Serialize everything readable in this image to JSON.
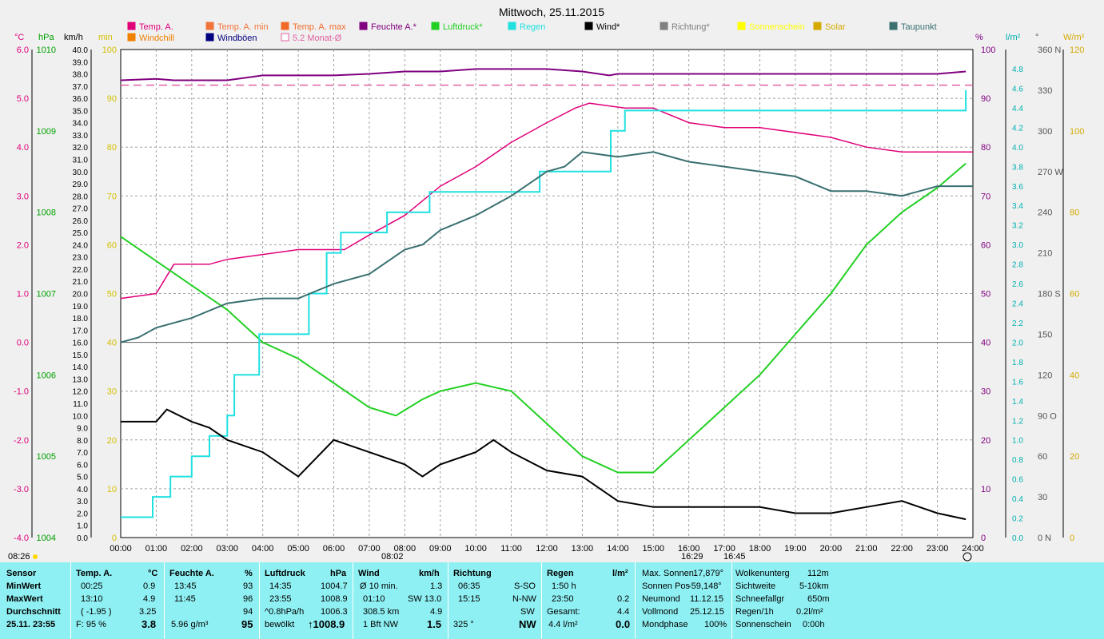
{
  "title": "Mittwoch, 25.11.2015",
  "legend": [
    {
      "label": "Temp. A.",
      "color": "#e0007a"
    },
    {
      "label": "Temp. A. min",
      "color": "#f0743a"
    },
    {
      "label": "Temp. A. max",
      "color": "#f06a2a"
    },
    {
      "label": "Feuchte A.*",
      "color": "#800080"
    },
    {
      "label": "Luftdruck*",
      "color": "#22d022"
    },
    {
      "label": "Regen",
      "color": "#20e0e0"
    },
    {
      "label": "Wind*",
      "color": "#000000"
    },
    {
      "label": "Richtung*",
      "color": "#808080"
    },
    {
      "label": "Sonnenschein",
      "color": "#ffff00"
    },
    {
      "label": "Solar",
      "color": "#d4aa00"
    },
    {
      "label": "Taupunkt",
      "color": "#3a7070"
    },
    {
      "label": "Windchill",
      "color": "#f08000"
    },
    {
      "label": "Windböen",
      "color": "#000080"
    },
    {
      "label": "5.2 Monat-Ø",
      "color": "#e060a0"
    }
  ],
  "axis_units": {
    "c": "°C",
    "hpa": "hPa",
    "kmh": "km/h",
    "min": "min",
    "pct": "%",
    "lm2": "l/m²",
    "deg": "°",
    "wm2": "W/m²"
  },
  "chart_data": {
    "type": "line",
    "title": "Mittwoch, 25.11.2015",
    "x_ticks": [
      "00:00",
      "01:00",
      "02:00",
      "03:00",
      "04:00",
      "05:00",
      "06:00",
      "07:00",
      "08:00",
      "09:00",
      "10:00",
      "11:00",
      "12:00",
      "13:00",
      "14:00",
      "15:00",
      "16:00",
      "17:00",
      "18:00",
      "19:00",
      "20:00",
      "21:00",
      "22:00",
      "23:00",
      "24:00"
    ],
    "axes": {
      "temp_c": {
        "range": [
          -4.0,
          6.0
        ],
        "ticks": [
          "6.0",
          "5.0",
          "4.0",
          "3.0",
          "2.0",
          "1.0",
          "0.0",
          "-1.0",
          "-2.0",
          "-3.0",
          "-4.0"
        ]
      },
      "pressure_hpa": {
        "range": [
          1004,
          1010
        ],
        "ticks": [
          "1010",
          "1009",
          "1008",
          "1007",
          "1006",
          "1005",
          "1004"
        ]
      },
      "wind_kmh": {
        "range": [
          0,
          40
        ],
        "step": 1
      },
      "sun_min": {
        "range": [
          0,
          100
        ],
        "ticks": [
          "100",
          "90",
          "80",
          "70",
          "60",
          "50",
          "40",
          "30",
          "20",
          "10",
          "0"
        ]
      },
      "humidity_pct": {
        "range": [
          0,
          100
        ],
        "ticks": [
          "100",
          "90",
          "80",
          "70",
          "60",
          "50",
          "40",
          "30",
          "20",
          "10",
          "0"
        ]
      },
      "rain_lm2": {
        "range": [
          0,
          4.8
        ],
        "ticks": [
          "4.8",
          "4.6",
          "4.4",
          "4.2",
          "4.0",
          "3.8",
          "3.6",
          "3.4",
          "3.2",
          "3.0",
          "2.8",
          "2.6",
          "2.4",
          "2.2",
          "2.0",
          "1.8",
          "1.6",
          "1.4",
          "1.2",
          "1.0",
          "0.8",
          "0.6",
          "0.4",
          "0.2",
          "0.0"
        ]
      },
      "direction_deg": {
        "range": [
          0,
          360
        ],
        "ticks": [
          "360 N",
          "330",
          "300",
          "270 W",
          "240",
          "210",
          "180 S",
          "150",
          "120",
          "90 O",
          "60",
          "30",
          "0 N"
        ]
      },
      "solar_wm2": {
        "range": [
          0,
          120
        ],
        "ticks": [
          "120",
          "100",
          "80",
          "60",
          "40",
          "20",
          "0"
        ]
      }
    },
    "series": [
      {
        "name": "Feuchte A.*",
        "axis": "humidity_pct",
        "points": [
          [
            0,
            93.7
          ],
          [
            1,
            94
          ],
          [
            1.5,
            93.7
          ],
          [
            3,
            93.7
          ],
          [
            4,
            94.7
          ],
          [
            5,
            94.7
          ],
          [
            6,
            94.7
          ],
          [
            7,
            95
          ],
          [
            8,
            95.5
          ],
          [
            9,
            95.5
          ],
          [
            10,
            96
          ],
          [
            11,
            96
          ],
          [
            12,
            96
          ],
          [
            13,
            95.5
          ],
          [
            13.75,
            94.7
          ],
          [
            14,
            95
          ],
          [
            18,
            95
          ],
          [
            22,
            95
          ],
          [
            23,
            95
          ],
          [
            23.8,
            95.5
          ]
        ]
      },
      {
        "name": "5.2 Monat-Ø",
        "axis": "humidity_pct",
        "points": [
          [
            0,
            92.7
          ],
          [
            24,
            92.7
          ]
        ]
      },
      {
        "name": "Temp. A.",
        "axis": "temp_c",
        "points": [
          [
            0,
            0.9
          ],
          [
            1,
            1.0
          ],
          [
            1.5,
            1.6
          ],
          [
            2.5,
            1.6
          ],
          [
            3,
            1.7
          ],
          [
            4,
            1.8
          ],
          [
            5,
            1.9
          ],
          [
            6.3,
            1.9
          ],
          [
            7,
            2.2
          ],
          [
            8,
            2.6
          ],
          [
            9,
            3.2
          ],
          [
            10,
            3.6
          ],
          [
            11,
            4.1
          ],
          [
            12,
            4.5
          ],
          [
            12.8,
            4.8
          ],
          [
            13.2,
            4.9
          ],
          [
            14.2,
            4.8
          ],
          [
            15,
            4.8
          ],
          [
            16,
            4.5
          ],
          [
            17,
            4.4
          ],
          [
            18,
            4.4
          ],
          [
            20,
            4.2
          ],
          [
            21,
            4.0
          ],
          [
            22,
            3.9
          ],
          [
            24,
            3.9
          ]
        ]
      },
      {
        "name": "Luftdruck*",
        "axis": "pressure_hpa",
        "points": [
          [
            0,
            1007.7
          ],
          [
            1,
            1007.4
          ],
          [
            2,
            1007.1
          ],
          [
            3,
            1006.8
          ],
          [
            4,
            1006.4
          ],
          [
            5,
            1006.2
          ],
          [
            6,
            1005.9
          ],
          [
            7,
            1005.6
          ],
          [
            7.75,
            1005.5
          ],
          [
            8.5,
            1005.7
          ],
          [
            9,
            1005.8
          ],
          [
            10,
            1005.9
          ],
          [
            11,
            1005.8
          ],
          [
            12,
            1005.4
          ],
          [
            13,
            1005.0
          ],
          [
            14,
            1004.8
          ],
          [
            14.6,
            1004.8
          ],
          [
            15,
            1004.8
          ],
          [
            16,
            1005.2
          ],
          [
            17,
            1005.6
          ],
          [
            18,
            1006.0
          ],
          [
            19,
            1006.5
          ],
          [
            20,
            1007.0
          ],
          [
            21,
            1007.6
          ],
          [
            22,
            1008.0
          ],
          [
            23,
            1008.3
          ],
          [
            23.8,
            1008.6
          ]
        ]
      },
      {
        "name": "Regen",
        "axis": "rain_lm2",
        "points": [
          [
            0,
            0.2
          ],
          [
            0.9,
            0.2
          ],
          [
            0.9,
            0.4
          ],
          [
            1.4,
            0.4
          ],
          [
            1.4,
            0.6
          ],
          [
            2,
            0.6
          ],
          [
            2,
            0.8
          ],
          [
            2.5,
            0.8
          ],
          [
            2.5,
            1.0
          ],
          [
            3,
            1.0
          ],
          [
            3,
            1.2
          ],
          [
            3.2,
            1.2
          ],
          [
            3.2,
            1.6
          ],
          [
            3.9,
            1.6
          ],
          [
            3.9,
            2.0
          ],
          [
            5.3,
            2.0
          ],
          [
            5.3,
            2.4
          ],
          [
            5.8,
            2.4
          ],
          [
            5.8,
            2.8
          ],
          [
            6.2,
            2.8
          ],
          [
            6.2,
            3.0
          ],
          [
            7.5,
            3.0
          ],
          [
            7.5,
            3.2
          ],
          [
            8.7,
            3.2
          ],
          [
            8.7,
            3.4
          ],
          [
            11.8,
            3.4
          ],
          [
            11.8,
            3.6
          ],
          [
            13.8,
            3.6
          ],
          [
            13.8,
            4.0
          ],
          [
            14.2,
            4.0
          ],
          [
            14.2,
            4.2
          ],
          [
            23.8,
            4.2
          ],
          [
            23.8,
            4.4
          ]
        ]
      },
      {
        "name": "Wind*",
        "axis": "wind_kmh",
        "points": [
          [
            0,
            9.5
          ],
          [
            1,
            9.5
          ],
          [
            1.3,
            10.5
          ],
          [
            2,
            9.5
          ],
          [
            2.5,
            9
          ],
          [
            3,
            8
          ],
          [
            4,
            7
          ],
          [
            5,
            5
          ],
          [
            6,
            8
          ],
          [
            7,
            7
          ],
          [
            8,
            6
          ],
          [
            8.5,
            5
          ],
          [
            9,
            6
          ],
          [
            10,
            7
          ],
          [
            10.5,
            8
          ],
          [
            11,
            7
          ],
          [
            12,
            5.5
          ],
          [
            13,
            5
          ],
          [
            13.5,
            4
          ],
          [
            14,
            3
          ],
          [
            15,
            2.5
          ],
          [
            16,
            2.5
          ],
          [
            17,
            2.5
          ],
          [
            18,
            2.5
          ],
          [
            19,
            2
          ],
          [
            20,
            2
          ],
          [
            21,
            2.5
          ],
          [
            22,
            3
          ],
          [
            23,
            2
          ],
          [
            23.8,
            1.5
          ]
        ]
      },
      {
        "name": "Taupunkt",
        "axis": "temp_c",
        "points": [
          [
            0,
            0.0
          ],
          [
            0.5,
            0.1
          ],
          [
            1,
            0.3
          ],
          [
            2,
            0.5
          ],
          [
            3,
            0.8
          ],
          [
            4,
            0.9
          ],
          [
            5,
            0.9
          ],
          [
            6,
            1.2
          ],
          [
            7,
            1.4
          ],
          [
            8,
            1.9
          ],
          [
            8.5,
            2.0
          ],
          [
            9,
            2.3
          ],
          [
            10,
            2.6
          ],
          [
            11,
            3.0
          ],
          [
            12,
            3.5
          ],
          [
            12.5,
            3.6
          ],
          [
            13,
            3.9
          ],
          [
            14,
            3.8
          ],
          [
            15,
            3.9
          ],
          [
            16,
            3.7
          ],
          [
            17,
            3.6
          ],
          [
            18,
            3.5
          ],
          [
            19,
            3.4
          ],
          [
            20,
            3.1
          ],
          [
            21,
            3.1
          ],
          [
            22,
            3.0
          ],
          [
            23,
            3.2
          ],
          [
            24,
            3.2
          ]
        ]
      }
    ]
  },
  "bottom": {
    "sensor": {
      "header": "Sensor",
      "rows": [
        "MinWert",
        "MaxWert",
        "Durchschnitt",
        "25.11. 23:55"
      ]
    },
    "temp": {
      "header": "Temp. A.",
      "unit": "°C",
      "rows": [
        [
          "00:25",
          "0.9"
        ],
        [
          "13:10",
          "4.9"
        ],
        [
          "( -1.95 )",
          "3.25"
        ],
        [
          "F: 95 %",
          "3.8"
        ]
      ]
    },
    "feuchte": {
      "header": "Feuchte A.",
      "unit": "%",
      "rows": [
        [
          "13:45",
          "93"
        ],
        [
          "11:45",
          "96"
        ],
        [
          "",
          "94"
        ],
        [
          "5.96 g/m³",
          "95"
        ]
      ]
    },
    "luftdruck": {
      "header": "Luftdruck",
      "unit": "hPa",
      "rows": [
        [
          "14:35",
          "1004.7"
        ],
        [
          "23:55",
          "1008.9"
        ],
        [
          "^0.8hPa/h",
          "1006.3"
        ],
        [
          "bewölkt",
          "↑1008.9"
        ]
      ]
    },
    "wind": {
      "header": "Wind",
      "unit": "km/h",
      "rows": [
        [
          "Ø 10 min.",
          "1.3"
        ],
        [
          "01:10",
          "SW 13.0"
        ],
        [
          "308.5 km",
          "4.9"
        ],
        [
          "1 Bft NW",
          "1.5"
        ]
      ]
    },
    "richtung": {
      "header": "Richtung",
      "rows": [
        [
          "06:35",
          "S-SO"
        ],
        [
          "15:15",
          "N-NW"
        ],
        [
          "",
          "SW"
        ],
        [
          "325 °",
          "NW"
        ]
      ]
    },
    "regen": {
      "header": "Regen",
      "unit": "l/m²",
      "rows": [
        [
          "1:50 h",
          ""
        ],
        [
          "23:50",
          "0.2"
        ],
        [
          "Gesamt:",
          "4.4"
        ],
        [
          "4.4 l/m²",
          "0.0"
        ]
      ]
    },
    "sun": {
      "rows": [
        [
          "Max. Sonnen",
          "17,879°"
        ],
        [
          "Sonnen Pos",
          "-59,148°"
        ],
        [
          "Neumond",
          "11.12.15"
        ],
        [
          "Vollmond",
          "25.12.15"
        ],
        [
          "Mondphase",
          "100%"
        ]
      ]
    },
    "misc": {
      "rows": [
        [
          "Wolkenunterg",
          "112m"
        ],
        [
          "Sichtweite",
          "5-10km"
        ],
        [
          "Schneefallgr",
          "650m"
        ],
        [
          "Regen/1h",
          "0.2l/m²"
        ],
        [
          "Sonnenschein",
          "0:00h"
        ]
      ]
    }
  },
  "time_markers": {
    "sunrise": "08:26",
    "sunrise_mark": "08:02",
    "sunset": "16:29",
    "sunset_mark": "16:45",
    "left_time": "07:00",
    "x0": "0"
  }
}
